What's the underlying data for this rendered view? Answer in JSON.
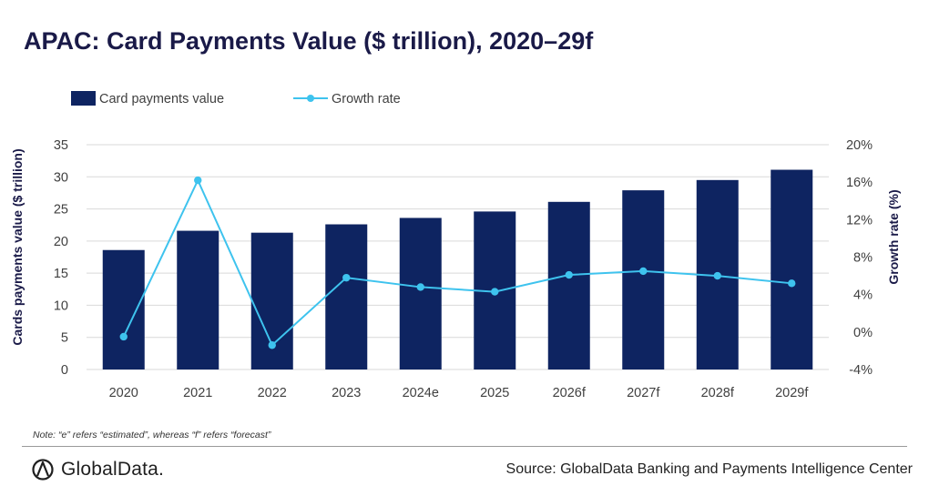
{
  "title": "APAC: Card Payments Value ($ trillion), 2020–29f",
  "note": "Note: “e” refers “estimated”, whereas “f” refers “forecast”",
  "source": "Source: GlobalData Banking and Payments Intelligence Center",
  "logo": {
    "text": "GlobalData.",
    "icon": "globaldata-logo-icon"
  },
  "colors": {
    "bar": "#0e2461",
    "line": "#3ec3ee",
    "grid": "#d9d9d9",
    "axis_text": "#404040"
  },
  "chart_data": {
    "type": "bar",
    "categories": [
      "2020",
      "2021",
      "2022",
      "2023",
      "2024e",
      "2025",
      "2026f",
      "2027f",
      "2028f",
      "2029f"
    ],
    "series": [
      {
        "name": "Card payments value",
        "type": "bar",
        "axis": "left",
        "values": [
          18.6,
          21.6,
          21.3,
          22.6,
          23.6,
          24.6,
          26.1,
          27.9,
          29.5,
          31.1
        ]
      },
      {
        "name": "Growth rate",
        "type": "line",
        "axis": "right",
        "values": [
          -0.5,
          16.2,
          -1.4,
          5.8,
          4.8,
          4.3,
          6.1,
          6.5,
          6.0,
          5.2
        ]
      }
    ],
    "ylabel": "Cards payments value ($ trillion)",
    "y2label": "Growth rate (%)",
    "ylim": [
      0,
      35
    ],
    "y2lim": [
      -4,
      20
    ],
    "yticks": [
      "0",
      "5",
      "10",
      "15",
      "20",
      "25",
      "30",
      "35"
    ],
    "y2ticks": [
      "-4%",
      "0%",
      "4%",
      "8%",
      "12%",
      "16%",
      "20%"
    ],
    "grid": true,
    "legend": "top-left"
  }
}
